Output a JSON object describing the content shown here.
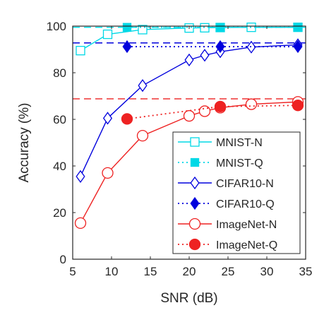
{
  "chart_data": {
    "type": "line",
    "xlabel": "SNR (dB)",
    "ylabel": "Accuracy (%)",
    "xlim": [
      5,
      35
    ],
    "ylim": [
      0,
      100
    ],
    "xticks": [
      5,
      10,
      15,
      20,
      25,
      30,
      35
    ],
    "yticks": [
      0,
      20,
      40,
      60,
      80,
      100
    ],
    "grid": false,
    "legend_position": "bottom-right",
    "reference_lines": [
      {
        "y": 99.5,
        "color": "#00e5ee"
      },
      {
        "y": 92.8,
        "color": "#0000dd"
      },
      {
        "y": 68.8,
        "color": "#ee2222"
      }
    ],
    "series": [
      {
        "name": "MNIST-N",
        "color": "#00d8e6",
        "line": "solid",
        "marker": "square",
        "filled": false,
        "x": [
          6,
          9.5,
          14,
          20,
          22,
          24,
          28,
          34
        ],
        "y": [
          89.5,
          96.5,
          98.5,
          99.2,
          99.3,
          99.4,
          99.5,
          99.5
        ]
      },
      {
        "name": "MNIST-Q",
        "color": "#00d8e6",
        "line": "dotted",
        "marker": "square",
        "filled": true,
        "x": [
          12,
          24,
          34
        ],
        "y": [
          99.5,
          99.5,
          99.5
        ]
      },
      {
        "name": "CIFAR10-N",
        "color": "#0000dd",
        "line": "solid",
        "marker": "diamond",
        "filled": false,
        "x": [
          6,
          9.5,
          14,
          20,
          22,
          24,
          28,
          34
        ],
        "y": [
          35.5,
          60.5,
          74.5,
          85.5,
          87.5,
          89,
          91,
          92
        ]
      },
      {
        "name": "CIFAR10-Q",
        "color": "#0000dd",
        "line": "dotted",
        "marker": "diamond",
        "filled": true,
        "x": [
          12,
          24,
          34
        ],
        "y": [
          91.2,
          91.2,
          91.2
        ]
      },
      {
        "name": "ImageNet-N",
        "color": "#ee2222",
        "line": "solid",
        "marker": "circle",
        "filled": false,
        "x": [
          6,
          9.5,
          14,
          20,
          22,
          24,
          28,
          34
        ],
        "y": [
          15.5,
          37,
          53,
          61.5,
          63.5,
          65,
          66.5,
          67.5
        ]
      },
      {
        "name": "ImageNet-Q",
        "color": "#ee2222",
        "line": "dotted",
        "marker": "circle",
        "filled": true,
        "x": [
          12,
          24,
          34
        ],
        "y": [
          60.2,
          65.5,
          66
        ]
      }
    ]
  }
}
